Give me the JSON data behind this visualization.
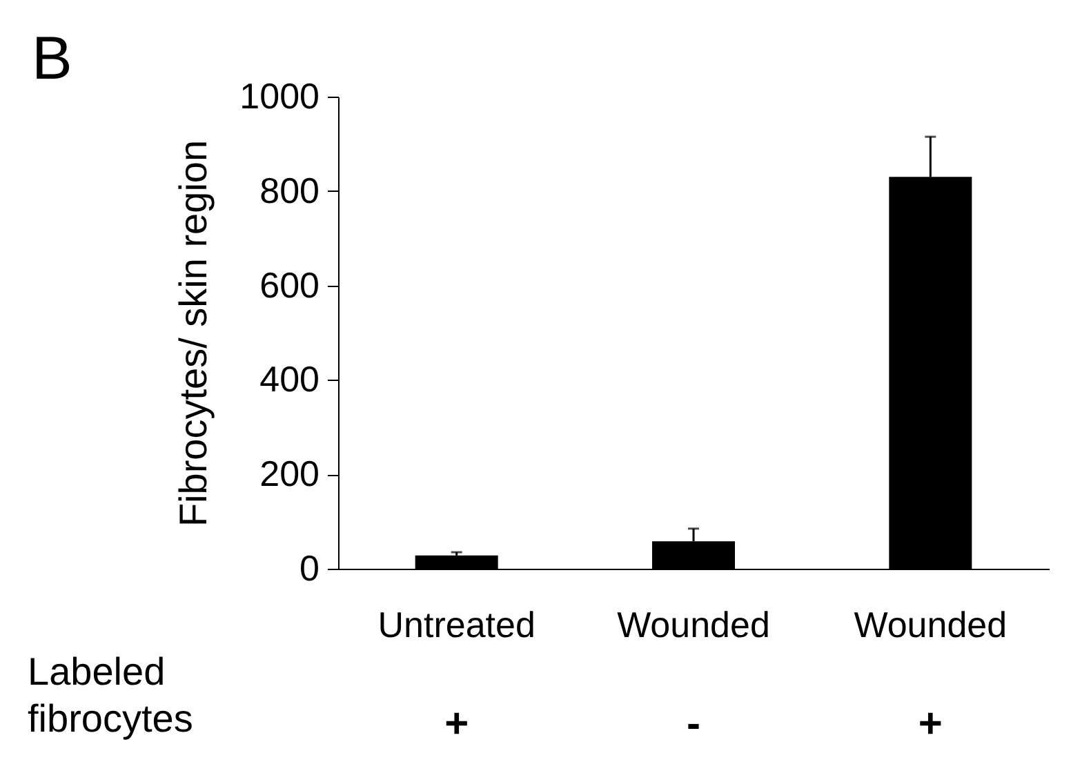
{
  "chart_data": {
    "type": "bar",
    "ylabel": "Fibrocytes/ skin region",
    "categories": [
      "Untreated",
      "Wounded",
      "Wounded"
    ],
    "values": [
      28,
      58,
      830
    ],
    "color": "#000000",
    "errors": [
      [
        28,
        35
      ],
      [
        58,
        85
      ],
      [
        830,
        915
      ]
    ],
    "ylim": [
      0,
      1000
    ],
    "yticks": [
      0,
      200,
      400,
      600,
      800,
      1000
    ],
    "grid": false,
    "annotations": [
      "B",
      "Labeled fibrocytes",
      "+",
      "-",
      "+"
    ]
  }
}
